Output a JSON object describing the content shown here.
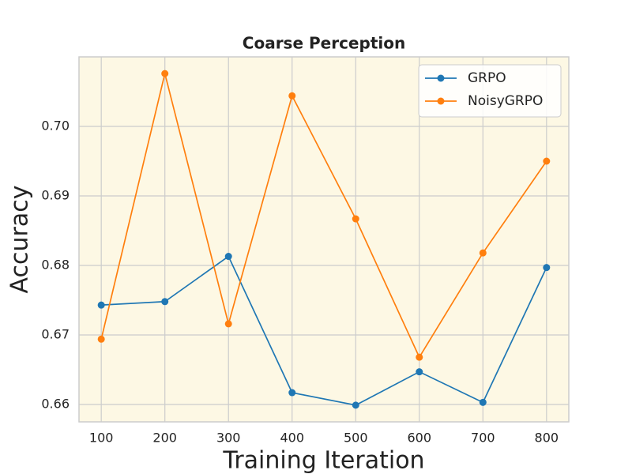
{
  "chart_data": {
    "type": "line",
    "title": "Coarse Perception",
    "x_label": "Training Iteration",
    "y_label": "Accuracy",
    "x": [
      100,
      200,
      300,
      400,
      500,
      600,
      700,
      800
    ],
    "series": [
      {
        "name": "GRPO",
        "color": "#1f77b4",
        "values": [
          0.6743,
          0.6748,
          0.6813,
          0.6617,
          0.6599,
          0.6647,
          0.6603,
          0.6797
        ]
      },
      {
        "name": "NoisyGRPO",
        "color": "#ff7f0e",
        "values": [
          0.6694,
          0.7076,
          0.6716,
          0.7044,
          0.6867,
          0.6668,
          0.6818,
          0.695
        ]
      }
    ],
    "xlim": [
      65,
      835
    ],
    "ylim": [
      0.6575,
      0.71
    ],
    "xticks": [
      100,
      200,
      300,
      400,
      500,
      600,
      700,
      800
    ],
    "yticks": [
      0.66,
      0.67,
      0.68,
      0.69,
      {
        "value": 0.7,
        "label": "0.70"
      }
    ],
    "grid": true,
    "legend": "upper right",
    "background": "#fdf8e4"
  }
}
